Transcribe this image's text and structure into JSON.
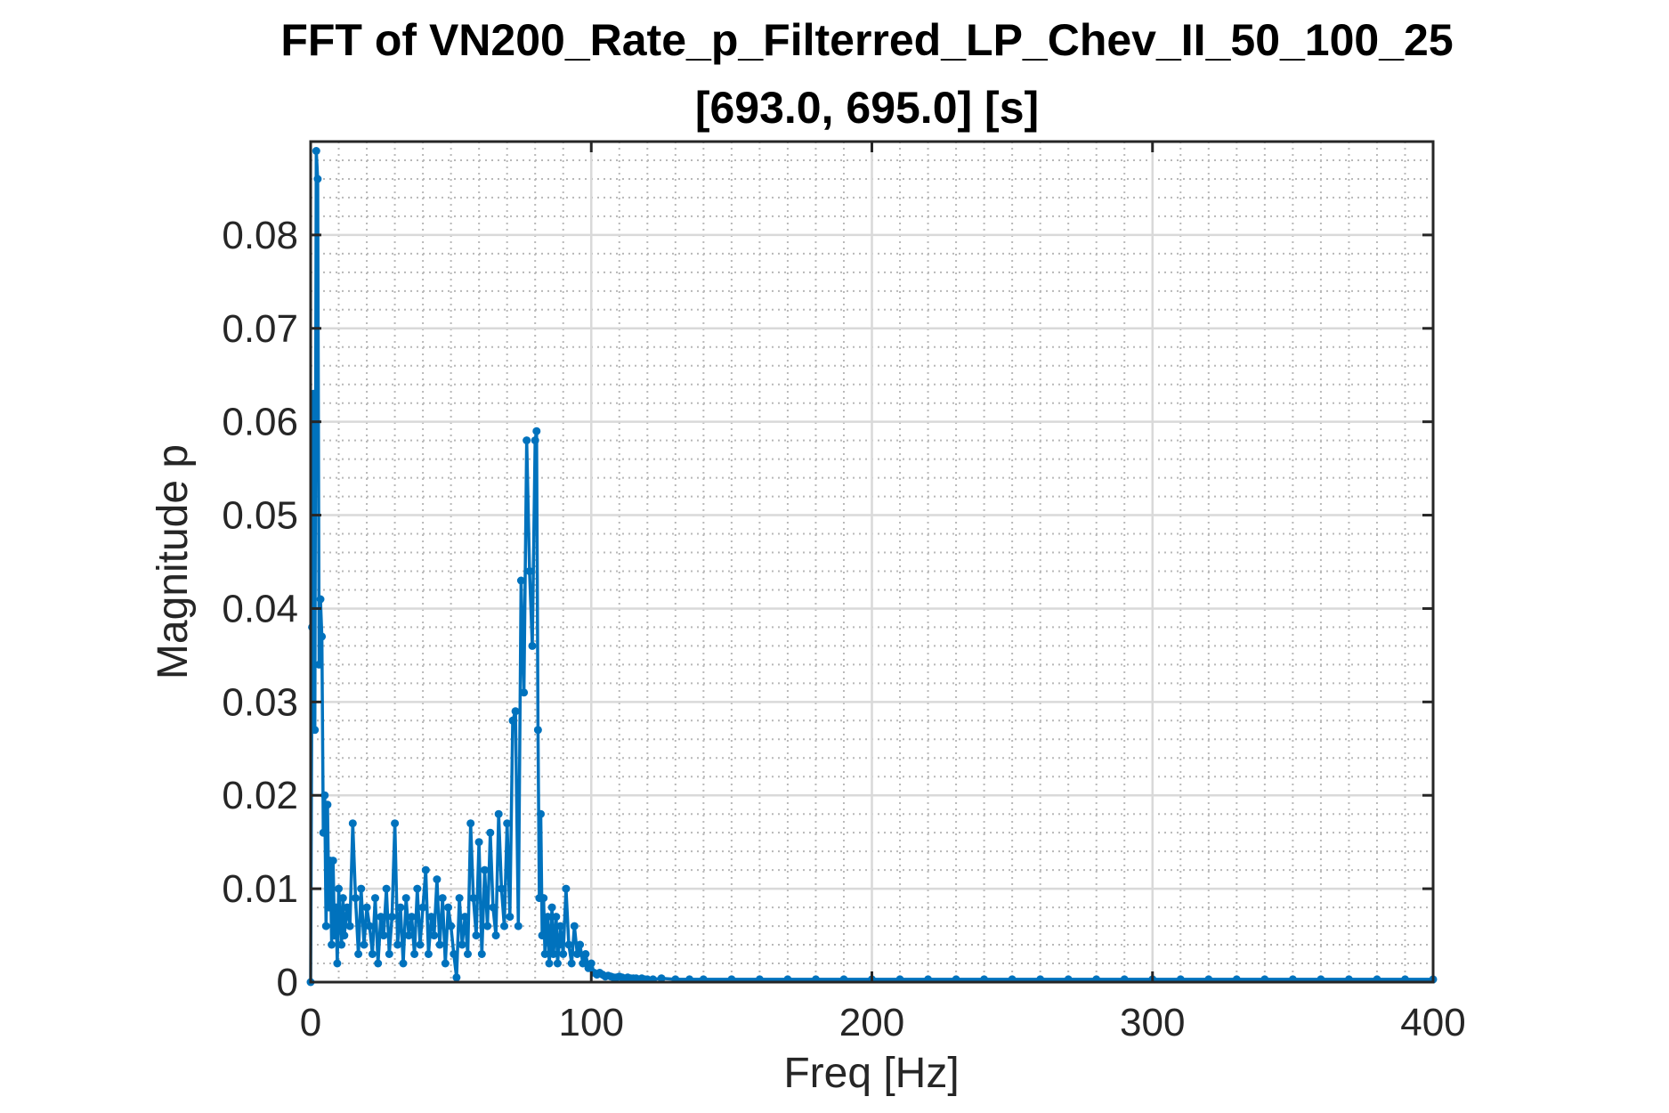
{
  "chart_data": {
    "type": "line",
    "title": "FFT of VN200_Rate_p_Filterred_LP_Chev_II_50_100_25",
    "subtitle": "[693.0, 695.0] [s]",
    "xlabel": "Freq [Hz]",
    "ylabel": "Magnitude p",
    "xlim": [
      0,
      400
    ],
    "ylim": [
      0,
      0.09
    ],
    "xticks": [
      0,
      100,
      200,
      300,
      400
    ],
    "yticks": [
      0,
      0.01,
      0.02,
      0.03,
      0.04,
      0.05,
      0.06,
      0.07,
      0.08
    ],
    "xtick_labels": [
      "0",
      "100",
      "200",
      "300",
      "400"
    ],
    "ytick_labels": [
      "0",
      "0.01",
      "0.02",
      "0.03",
      "0.04",
      "0.05",
      "0.06",
      "0.07",
      "0.08"
    ],
    "grid": true,
    "minor_grid": true,
    "markers": true,
    "line_color": "#0072BD",
    "series": [
      {
        "x": [
          0,
          0.5,
          1,
          1.5,
          2,
          2.5,
          3,
          3.5,
          4,
          4.5,
          5,
          5.5,
          6,
          6.5,
          7,
          7.5,
          8,
          8.5,
          9,
          9.5,
          10,
          10.5,
          11,
          11.5,
          12,
          13,
          14,
          15,
          16,
          17,
          18,
          19,
          20,
          21,
          22,
          23,
          24,
          25,
          26,
          27,
          28,
          29,
          30,
          31,
          32,
          33,
          34,
          35,
          36,
          37,
          38,
          39,
          40,
          41,
          42,
          43,
          44,
          45,
          46,
          47,
          48,
          49,
          50,
          51,
          52,
          53,
          54,
          55,
          56,
          57,
          58,
          59,
          60,
          61,
          62,
          63,
          64,
          65,
          66,
          67,
          68,
          69,
          70,
          71,
          72,
          73,
          74,
          75,
          76,
          77,
          78,
          79,
          80,
          80.5,
          81,
          81.5,
          82,
          82.5,
          83,
          83.5,
          84,
          84.5,
          85,
          85.5,
          86,
          86.5,
          87,
          87.5,
          88,
          88.5,
          89,
          90,
          91,
          92,
          93,
          94,
          95,
          96,
          97,
          98,
          99,
          100,
          101,
          102,
          103,
          104,
          105,
          106,
          107,
          108,
          109,
          110,
          111,
          112,
          113,
          114,
          115,
          116,
          117,
          118,
          119,
          120,
          122,
          125,
          130,
          135,
          140,
          150,
          160,
          170,
          180,
          190,
          200,
          210,
          220,
          230,
          240,
          250,
          260,
          270,
          280,
          290,
          300,
          310,
          320,
          330,
          340,
          350,
          360,
          370,
          380,
          390,
          400
        ],
        "values": [
          0,
          0.038,
          0.063,
          0.027,
          0.089,
          0.086,
          0.034,
          0.041,
          0.037,
          0.016,
          0.02,
          0.006,
          0.019,
          0.008,
          0.013,
          0.004,
          0.013,
          0.005,
          0.008,
          0.002,
          0.01,
          0.007,
          0.004,
          0.009,
          0.005,
          0.008,
          0.006,
          0.017,
          0.009,
          0.003,
          0.01,
          0.004,
          0.008,
          0.006,
          0.003,
          0.009,
          0.002,
          0.007,
          0.005,
          0.01,
          0.003,
          0.007,
          0.017,
          0.004,
          0.008,
          0.002,
          0.009,
          0.005,
          0.007,
          0.003,
          0.01,
          0.004,
          0.008,
          0.012,
          0.003,
          0.007,
          0.005,
          0.011,
          0.004,
          0.009,
          0.002,
          0.008,
          0.006,
          0.003,
          0.0005,
          0.009,
          0.004,
          0.007,
          0.003,
          0.017,
          0.009,
          0.005,
          0.015,
          0.003,
          0.012,
          0.006,
          0.016,
          0.008,
          0.005,
          0.018,
          0.01,
          0.006,
          0.017,
          0.007,
          0.028,
          0.029,
          0.006,
          0.043,
          0.031,
          0.058,
          0.044,
          0.036,
          0.058,
          0.059,
          0.027,
          0.009,
          0.018,
          0.005,
          0.009,
          0.003,
          0.006,
          0.007,
          0.002,
          0.004,
          0.008,
          0.003,
          0.005,
          0.007,
          0.002,
          0.004,
          0.006,
          0.003,
          0.01,
          0.004,
          0.002,
          0.006,
          0.003,
          0.004,
          0.002,
          0.003,
          0.0015,
          0.002,
          0.001,
          0.0008,
          0.001,
          0.0008,
          0.0006,
          0.0007,
          0.0006,
          0.0005,
          0.0005,
          0.0006,
          0.0005,
          0.0004,
          0.0005,
          0.0004,
          0.0004,
          0.0004,
          0.0003,
          0.0004,
          0.0003,
          0.0003,
          0.0003,
          0.0004,
          0.0003,
          0.0003,
          0.0003,
          0.0003,
          0.0003,
          0.0003,
          0.0003,
          0.0003,
          0.0003,
          0.0003,
          0.0003,
          0.0003,
          0.0003,
          0.0003,
          0.0003,
          0.0003,
          0.0003,
          0.0003,
          0.0003,
          0.0003,
          0.0003,
          0.0003,
          0.0003,
          0.0003,
          0.0003,
          0.0003,
          0.0003,
          0.0003,
          0.0003
        ]
      }
    ]
  }
}
